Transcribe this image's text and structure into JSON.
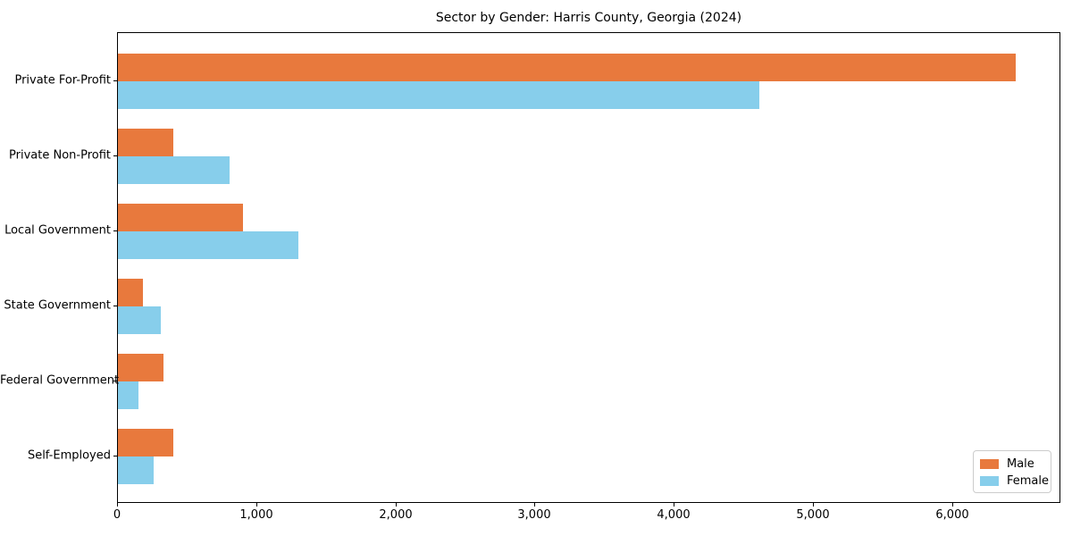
{
  "chart_data": {
    "type": "bar",
    "orientation": "horizontal",
    "title": "Sector by Gender: Harris County, Georgia (2024)",
    "categories": [
      "Private For-Profit",
      "Private Non-Profit",
      "Local Government",
      "State Government",
      "Federal Government",
      "Self-Employed"
    ],
    "series": [
      {
        "name": "Male",
        "color": "#E8793D",
        "values": [
          6450,
          400,
          900,
          180,
          330,
          400
        ]
      },
      {
        "name": "Female",
        "color": "#87CEEB",
        "values": [
          4610,
          800,
          1300,
          310,
          150,
          260
        ]
      }
    ],
    "xlabel": "",
    "ylabel": "",
    "xlim": [
      0,
      6780
    ],
    "x_ticks": [
      0,
      1000,
      2000,
      3000,
      4000,
      5000,
      6000
    ],
    "x_tick_labels": [
      "0",
      "1,000",
      "2,000",
      "3,000",
      "4,000",
      "5,000",
      "6,000"
    ],
    "grid": false,
    "legend_position": "lower right",
    "background_color": "#ffffff",
    "spine_color": "#000000"
  }
}
